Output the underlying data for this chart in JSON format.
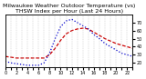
{
  "title": "Milwaukee Weather Outdoor Temperature (vs) THSW Index per Hour (Last 24 Hours)",
  "hours": [
    0,
    1,
    2,
    3,
    4,
    5,
    6,
    7,
    8,
    9,
    10,
    11,
    12,
    13,
    14,
    15,
    16,
    17,
    18,
    19,
    20,
    21,
    22,
    23
  ],
  "temp": [
    28,
    27,
    26,
    26,
    26,
    26,
    26,
    26,
    30,
    38,
    48,
    56,
    60,
    62,
    63,
    62,
    58,
    54,
    50,
    47,
    44,
    42,
    40,
    38
  ],
  "thsw": [
    22,
    20,
    19,
    18,
    17,
    17,
    17,
    20,
    32,
    50,
    65,
    72,
    74,
    70,
    66,
    62,
    55,
    50,
    44,
    40,
    36,
    32,
    30,
    28
  ],
  "temp_color": "#cc0000",
  "thsw_color": "#0000cc",
  "ylim": [
    15,
    80
  ],
  "yticks_right": [
    20,
    30,
    40,
    50,
    60,
    70
  ],
  "grid_color": "#aaaaaa",
  "bg_color": "#ffffff",
  "title_fontsize": 4.5,
  "tick_fontsize": 3.5,
  "line_width": 0.9
}
